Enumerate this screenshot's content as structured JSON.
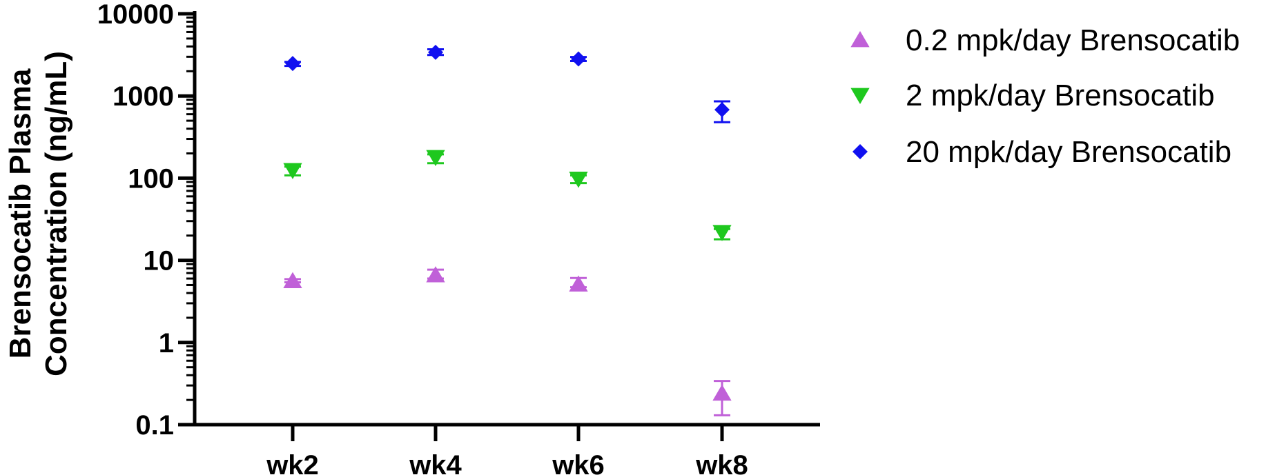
{
  "chart_data": {
    "type": "scatter",
    "title": "",
    "xlabel": "",
    "ylabel_lines": [
      "Brensocatib Plasma",
      "Concentration (ng/mL)"
    ],
    "y_scale": "log",
    "ylim": [
      0.1,
      10000
    ],
    "y_ticks": [
      {
        "value": 0.1,
        "label": "0.1"
      },
      {
        "value": 1,
        "label": "1"
      },
      {
        "value": 10,
        "label": "10"
      },
      {
        "value": 100,
        "label": "100"
      },
      {
        "value": 1000,
        "label": "1000"
      },
      {
        "value": 10000,
        "label": "10000"
      }
    ],
    "categories": [
      "wk2",
      "wk4",
      "wk6",
      "wk8"
    ],
    "legend_position": "top-right",
    "grid": false,
    "series": [
      {
        "name": "0.2 mpk/day Brensocatib",
        "marker": "triangle-up",
        "color": "#C060D8",
        "values": [
          5.6,
          6.6,
          5.1,
          0.24
        ],
        "err_low": [
          5.4,
          6.0,
          4.7,
          0.13
        ],
        "err_high": [
          5.9,
          7.7,
          6.1,
          0.34
        ]
      },
      {
        "name": "2 mpk/day Brensocatib",
        "marker": "triangle-down",
        "color": "#1EC81E",
        "values": [
          125,
          180,
          98,
          22
        ],
        "err_low": [
          108,
          152,
          87,
          18
        ],
        "err_high": [
          138,
          195,
          108,
          24
        ]
      },
      {
        "name": "20 mpk/day Brensocatib",
        "marker": "diamond",
        "color": "#1010F0",
        "values": [
          2480,
          3400,
          2820,
          680
        ],
        "err_low": [
          2320,
          3150,
          2660,
          480
        ],
        "err_high": [
          2600,
          3700,
          2980,
          860
        ]
      }
    ]
  }
}
